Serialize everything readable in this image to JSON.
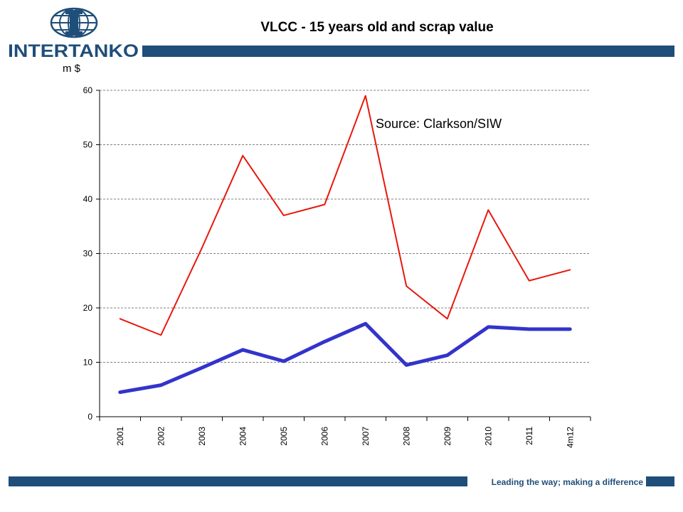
{
  "header": {
    "brand": "INTERTANKO",
    "title": "VLCC  - 15 years old and scrap value",
    "unit_label": "m $"
  },
  "footer": {
    "tagline": "Leading the way; making a difference"
  },
  "colors": {
    "brand_blue": "#1f4e79",
    "series_red": "#e8170c",
    "series_blue": "#3333cc"
  },
  "chart_data": {
    "type": "line",
    "title": "VLCC  - 15 years old and scrap value",
    "ylabel": "m $",
    "ylim": [
      0,
      60
    ],
    "yticks": [
      0,
      10,
      20,
      30,
      40,
      50,
      60
    ],
    "grid": "horizontal dashed",
    "annotation": "Source: Clarkson/SIW",
    "categories": [
      "2001",
      "2002",
      "2003",
      "2004",
      "2005",
      "2006",
      "2007",
      "2008",
      "2009",
      "2010",
      "2011",
      "4m12"
    ],
    "series": [
      {
        "values": [
          18,
          15,
          31,
          48,
          37,
          39,
          59,
          24,
          18,
          38,
          25,
          27
        ],
        "color": "#e8170c",
        "width": 2
      },
      {
        "values": [
          4.5,
          5.8,
          9,
          12.3,
          10.2,
          13.8,
          17.1,
          9.5,
          11.3,
          16.5,
          16.1,
          16.1
        ],
        "color": "#3333cc",
        "width": 5
      }
    ]
  }
}
